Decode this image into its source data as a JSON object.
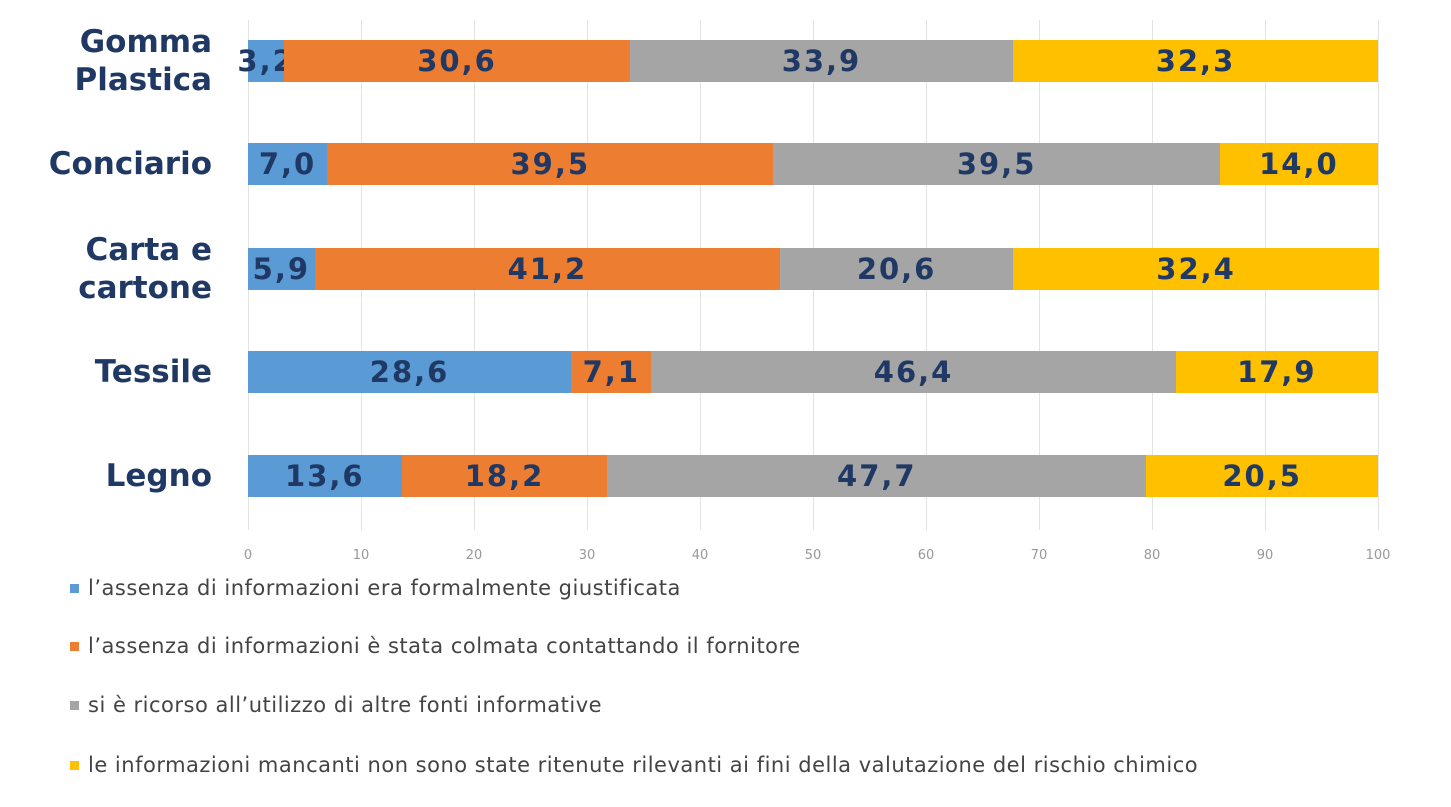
{
  "chart_data": {
    "type": "stacked_barh",
    "categories": [
      "Gomma Plastica",
      "Conciario",
      "Carta e cartone",
      "Tessile",
      "Legno"
    ],
    "series": [
      {
        "name": "l’assenza di informazioni era formalmente giustificata",
        "color": "#5b9bd5",
        "values": [
          3.2,
          7.0,
          5.9,
          28.6,
          13.6
        ],
        "value_labels": [
          "3,2",
          "7,0",
          "5,9",
          "28,6",
          "13,6"
        ]
      },
      {
        "name": "l’assenza di informazioni è stata colmata contattando il fornitore",
        "color": "#ed7d31",
        "values": [
          30.6,
          39.5,
          41.2,
          7.1,
          18.2
        ],
        "value_labels": [
          "30,6",
          "39,5",
          "41,2",
          "7,1",
          "18,2"
        ]
      },
      {
        "name": "si è ricorso all’utilizzo di altre fonti informative",
        "color": "#a5a5a5",
        "values": [
          33.9,
          39.5,
          20.6,
          46.4,
          47.7
        ],
        "value_labels": [
          "33,9",
          "39,5",
          "20,6",
          "46,4",
          "47,7"
        ]
      },
      {
        "name": "le informazioni mancanti non sono state ritenute rilevanti ai fini della valutazione del rischio chimico",
        "color": "#ffc000",
        "values": [
          32.3,
          14.0,
          32.4,
          17.9,
          20.5
        ],
        "value_labels": [
          "32,3",
          "14,0",
          "32,4",
          "17,9",
          "20,5"
        ]
      }
    ],
    "xlim": [
      0,
      100
    ],
    "xticks": [
      0,
      10,
      20,
      30,
      40,
      50,
      60,
      70,
      80,
      90,
      100
    ],
    "grid": true,
    "legend": "bottom"
  }
}
